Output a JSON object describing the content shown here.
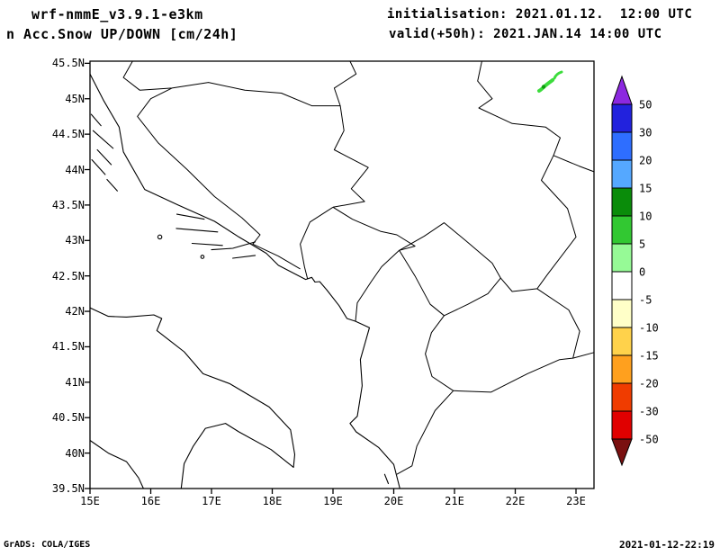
{
  "header": {
    "model_line": "wrf-nmmE_v3.9.1-e3km",
    "product_line": "n Acc.Snow UP/DOWN [cm/24h]",
    "init_line": "initialisation: 2021.01.12.  12:00 UTC",
    "valid_line": "valid(+50h): 2021.JAN.14 14:00 UTC"
  },
  "axes": {
    "lat_ticks": [
      "45.5N",
      "45N",
      "44.5N",
      "44N",
      "43.5N",
      "43N",
      "42.5N",
      "42N",
      "41.5N",
      "41N",
      "40.5N",
      "40N",
      "39.5N"
    ],
    "lon_ticks": [
      "15E",
      "16E",
      "17E",
      "18E",
      "19E",
      "20E",
      "21E",
      "22E",
      "23E"
    ]
  },
  "colorbar": {
    "levels": [
      "50",
      "30",
      "20",
      "15",
      "10",
      "5",
      "0",
      "-5",
      "-10",
      "-15",
      "-20",
      "-30",
      "-50"
    ],
    "segment_colors": [
      "#2222dd",
      "#2e6eff",
      "#55a8ff",
      "#0a8c0a",
      "#32c832",
      "#96fa96",
      "#ffffff",
      "#ffffc8",
      "#ffd24b",
      "#ffa01e",
      "#f03c00",
      "#e00000"
    ],
    "arrow_top_color": "#8c28e0",
    "arrow_bottom_color": "#7a1010"
  },
  "footer": {
    "credit": "GrADS: COLA/IGES",
    "timestamp": "2021-01-12-22:19"
  },
  "chart_data": {
    "type": "map",
    "title": "Acc.Snow UP/DOWN [cm/24h]",
    "model": "wrf-nmmE_v3.9.1-e3km",
    "initialisation": "2021.01.12. 12:00 UTC",
    "valid": "valid(+50h): 2021.JAN.14 14:00 UTC",
    "lon_range_deg_e": [
      15,
      23.3
    ],
    "lat_range_deg_n": [
      39.5,
      45.5
    ],
    "colorbar_levels_cm": [
      50,
      30,
      20,
      15,
      10,
      5,
      0,
      -5,
      -10,
      -15,
      -20,
      -30,
      -50
    ],
    "features": [
      {
        "name": "snow-accumulation-area",
        "approx_lon_e": 22.6,
        "approx_lat_n": 45.15,
        "value_cm": "0-5 with core 5-10"
      }
    ],
    "legend_position": "right",
    "grid": false
  }
}
